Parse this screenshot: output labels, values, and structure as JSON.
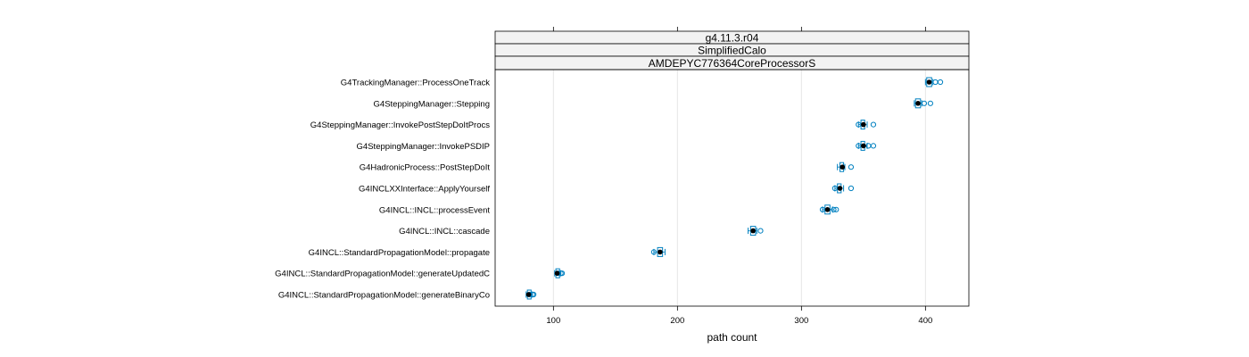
{
  "chart_data": {
    "type": "box",
    "strips": [
      "g4.11.3.r04",
      "SimplifiedCalo",
      "AMDEPYC776364CoreProcessorS"
    ],
    "xlabel": "path count",
    "ylabel": "",
    "xlim": [
      53,
      435
    ],
    "xticks": [
      100,
      200,
      300,
      400
    ],
    "grid": "vertical",
    "box_color": "#0080c0",
    "median_color": "#000000",
    "categories": [
      "G4TrackingManager::ProcessOneTrack",
      "G4SteppingManager::Stepping",
      "G4SteppingManager::InvokePostStepDoItProcs",
      "G4SteppingManager::InvokePSDIP",
      "G4HadronicProcess::PostStepDoIt",
      "G4INCLXXInterface::ApplyYourself",
      "G4INCL::INCL::processEvent",
      "G4INCL::INCL::cascade",
      "G4INCL::StandardPropagationModel::propagate",
      "G4INCL::StandardPropagationModel::generateUpdatedC",
      "G4INCL::StandardPropagationModel::generateBinaryCo"
    ],
    "boxes": [
      {
        "wlo": 400,
        "q1": 401,
        "median": 403,
        "q3": 405,
        "whi": 406,
        "outliers": [
          408,
          412
        ]
      },
      {
        "wlo": 391,
        "q1": 392,
        "median": 394,
        "q3": 396,
        "whi": 397,
        "outliers": [
          399,
          404
        ]
      },
      {
        "wlo": 346,
        "q1": 348,
        "median": 350,
        "q3": 351,
        "whi": 353,
        "outliers": [
          346,
          358
        ]
      },
      {
        "wlo": 346,
        "q1": 348,
        "median": 350,
        "q3": 351,
        "whi": 353,
        "outliers": [
          346,
          354,
          358
        ]
      },
      {
        "wlo": 329,
        "q1": 331,
        "median": 333,
        "q3": 334,
        "whi": 335,
        "outliers": [
          340
        ]
      },
      {
        "wlo": 327,
        "q1": 329,
        "median": 331,
        "q3": 332,
        "whi": 334,
        "outliers": [
          327,
          340
        ]
      },
      {
        "wlo": 317,
        "q1": 319,
        "median": 321,
        "q3": 323,
        "whi": 325,
        "outliers": [
          317,
          326,
          328
        ]
      },
      {
        "wlo": 257,
        "q1": 259,
        "median": 261,
        "q3": 263,
        "whi": 264,
        "outliers": [
          267
        ]
      },
      {
        "wlo": 181,
        "q1": 184,
        "median": 186,
        "q3": 188,
        "whi": 190,
        "outliers": [
          181
        ]
      },
      {
        "wlo": 101,
        "q1": 102,
        "median": 103,
        "q3": 105,
        "whi": 106,
        "outliers": [
          104,
          106,
          107
        ]
      },
      {
        "wlo": 78,
        "q1": 79,
        "median": 80,
        "q3": 82,
        "whi": 83,
        "outliers": [
          81,
          83,
          84
        ]
      }
    ]
  }
}
